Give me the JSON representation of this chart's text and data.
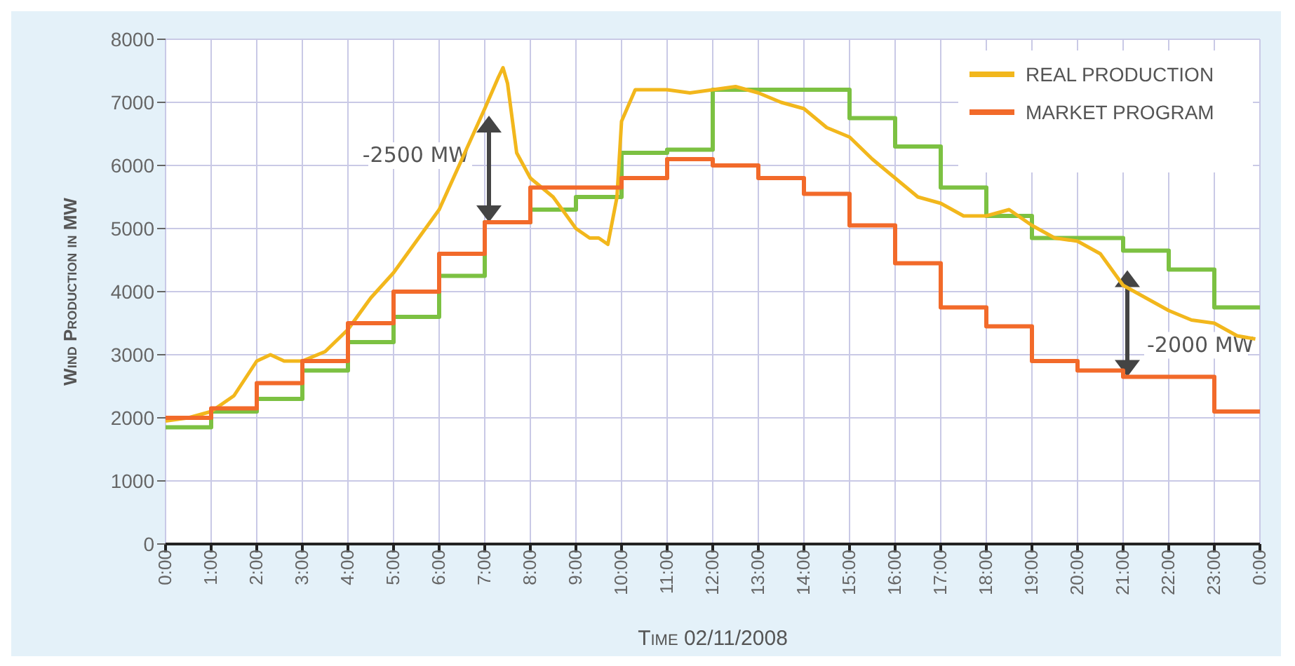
{
  "chart_data": {
    "type": "line",
    "xlabel": "Time 02/11/2008",
    "ylabel": "Wind Production in MW",
    "xlim": [
      0,
      24
    ],
    "ylim": [
      0,
      8000
    ],
    "xticks": [
      {
        "value": 0,
        "label": "0:00"
      },
      {
        "value": 1,
        "label": "1:00"
      },
      {
        "value": 2,
        "label": "2:00"
      },
      {
        "value": 3,
        "label": "3:00"
      },
      {
        "value": 4,
        "label": "4:00"
      },
      {
        "value": 5,
        "label": "5:00"
      },
      {
        "value": 6,
        "label": "6:00"
      },
      {
        "value": 7,
        "label": "7:00"
      },
      {
        "value": 8,
        "label": "8:00"
      },
      {
        "value": 9,
        "label": "9:00"
      },
      {
        "value": 10,
        "label": "10:00"
      },
      {
        "value": 11,
        "label": "11:00"
      },
      {
        "value": 12,
        "label": "12:00"
      },
      {
        "value": 13,
        "label": "13:00"
      },
      {
        "value": 14,
        "label": "14:00"
      },
      {
        "value": 15,
        "label": "15:00"
      },
      {
        "value": 16,
        "label": "16:00"
      },
      {
        "value": 17,
        "label": "17:00"
      },
      {
        "value": 18,
        "label": "18:00"
      },
      {
        "value": 19,
        "label": "19:00"
      },
      {
        "value": 20,
        "label": "20:00"
      },
      {
        "value": 21,
        "label": "21:00"
      },
      {
        "value": 22,
        "label": "22:00"
      },
      {
        "value": 23,
        "label": "23:00"
      },
      {
        "value": 24,
        "label": "0:00"
      }
    ],
    "yticks": [
      0,
      1000,
      2000,
      3000,
      4000,
      5000,
      6000,
      7000,
      8000
    ],
    "grid": true,
    "legend": "top right",
    "marker": "none",
    "series": [
      {
        "type": "step",
        "color": "#7cc142",
        "x": [
          0,
          1,
          2,
          3,
          4,
          5,
          6,
          7,
          8,
          9,
          10,
          11,
          12,
          13,
          14,
          15,
          16,
          17,
          18,
          19,
          20,
          21,
          22,
          23,
          24
        ],
        "values": [
          1850,
          2100,
          2300,
          2750,
          3200,
          3600,
          4250,
          5100,
          5300,
          5500,
          6200,
          6250,
          7200,
          7200,
          7200,
          6750,
          6300,
          5650,
          5200,
          4850,
          4850,
          4650,
          4350,
          3750,
          3750
        ]
      },
      {
        "type": "line",
        "name": "REAL PRODUCTION",
        "color": "#f2b71c",
        "x": [
          0,
          0.5,
          1,
          1.5,
          2,
          2.3,
          2.6,
          3,
          3.5,
          4,
          4.5,
          5,
          5.5,
          6,
          6.5,
          7,
          7.3,
          7.4,
          7.5,
          7.7,
          8,
          8.5,
          9,
          9.3,
          9.5,
          9.7,
          9.9,
          10,
          10.3,
          11,
          11.5,
          12,
          12.5,
          13,
          13.5,
          14,
          14.5,
          15,
          15.5,
          16,
          16.5,
          17,
          17.5,
          18,
          18.5,
          19,
          19.5,
          20,
          20.5,
          21,
          21.5,
          22,
          22.5,
          23,
          23.5,
          23.9
        ],
        "values": [
          1950,
          2000,
          2100,
          2350,
          2900,
          3000,
          2900,
          2900,
          3050,
          3400,
          3900,
          4300,
          4800,
          5300,
          6100,
          6900,
          7400,
          7550,
          7300,
          6200,
          5800,
          5500,
          5000,
          4850,
          4850,
          4750,
          5500,
          6700,
          7200,
          7200,
          7150,
          7200,
          7250,
          7150,
          7000,
          6900,
          6600,
          6450,
          6100,
          5800,
          5500,
          5400,
          5200,
          5200,
          5300,
          5050,
          4850,
          4800,
          4600,
          4100,
          3900,
          3700,
          3550,
          3500,
          3300,
          3250
        ]
      },
      {
        "type": "step",
        "name": "MARKET PROGRAM",
        "color": "#f26a2a",
        "x": [
          0,
          1,
          2,
          3,
          4,
          5,
          6,
          7,
          8,
          9,
          10,
          11,
          12,
          13,
          14,
          15,
          16,
          17,
          18,
          19,
          20,
          21,
          22,
          23,
          24
        ],
        "values": [
          2000,
          2150,
          2550,
          2900,
          3500,
          4000,
          4600,
          5100,
          5650,
          5650,
          5800,
          6100,
          6000,
          5800,
          5550,
          5050,
          4450,
          3750,
          3450,
          2900,
          2750,
          2650,
          2650,
          2100,
          2100
        ]
      }
    ],
    "annotations": [
      {
        "text": "-2500 MW",
        "x": 7,
        "y": 5100
      },
      {
        "text": "-2000 MW",
        "x": 21,
        "y": 2650
      }
    ]
  }
}
